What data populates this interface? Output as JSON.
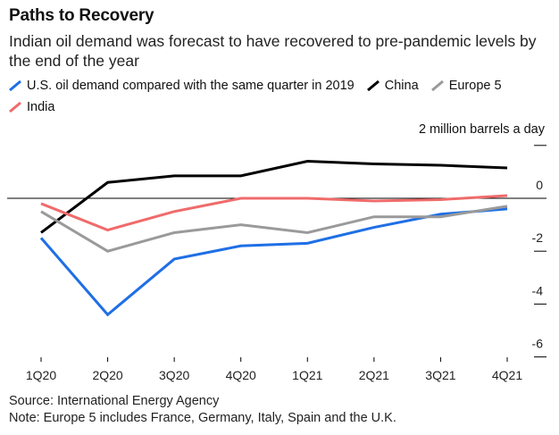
{
  "header": {
    "title": "Paths to Recovery",
    "subtitle": "Indian oil demand was forecast to have recovered to pre-pandemic levels by the end of the year"
  },
  "legend": {
    "us": "U.S. oil demand compared with the same quarter in 2019",
    "china": "China",
    "europe": "Europe 5",
    "india": "India"
  },
  "colors": {
    "us": "#1f6fe5",
    "china": "#000000",
    "europe": "#9a9a9a",
    "india": "#f06b6b"
  },
  "chart_data": {
    "type": "line",
    "title": "Paths to Recovery",
    "unit_label": "2 million barrels a day",
    "xlabel": "",
    "ylabel": "",
    "categories": [
      "1Q20",
      "2Q20",
      "3Q20",
      "4Q20",
      "1Q21",
      "2Q21",
      "3Q21",
      "4Q21"
    ],
    "ylim": [
      -6.5,
      2.2
    ],
    "yticks": [
      2,
      0,
      -2,
      -4,
      -6
    ],
    "ytick_labels": [
      "",
      "0",
      "-2",
      "-4",
      "-6"
    ],
    "series": [
      {
        "key": "us",
        "name": "U.S.",
        "values": [
          -1.5,
          -4.4,
          -2.3,
          -1.8,
          -1.7,
          -1.1,
          -0.6,
          -0.4
        ]
      },
      {
        "key": "china",
        "name": "China",
        "values": [
          -1.3,
          0.6,
          0.85,
          0.85,
          1.4,
          1.3,
          1.25,
          1.15
        ]
      },
      {
        "key": "europe",
        "name": "Europe 5",
        "values": [
          -0.5,
          -2.0,
          -1.3,
          -1.0,
          -1.3,
          -0.7,
          -0.7,
          -0.3
        ]
      },
      {
        "key": "india",
        "name": "India",
        "values": [
          -0.2,
          -1.2,
          -0.5,
          0.0,
          0.0,
          -0.1,
          -0.05,
          0.1
        ]
      }
    ]
  },
  "footer": {
    "source": "Source: International Energy Agency",
    "note": "Note: Europe 5 includes France, Germany, Italy, Spain and the U.K."
  }
}
